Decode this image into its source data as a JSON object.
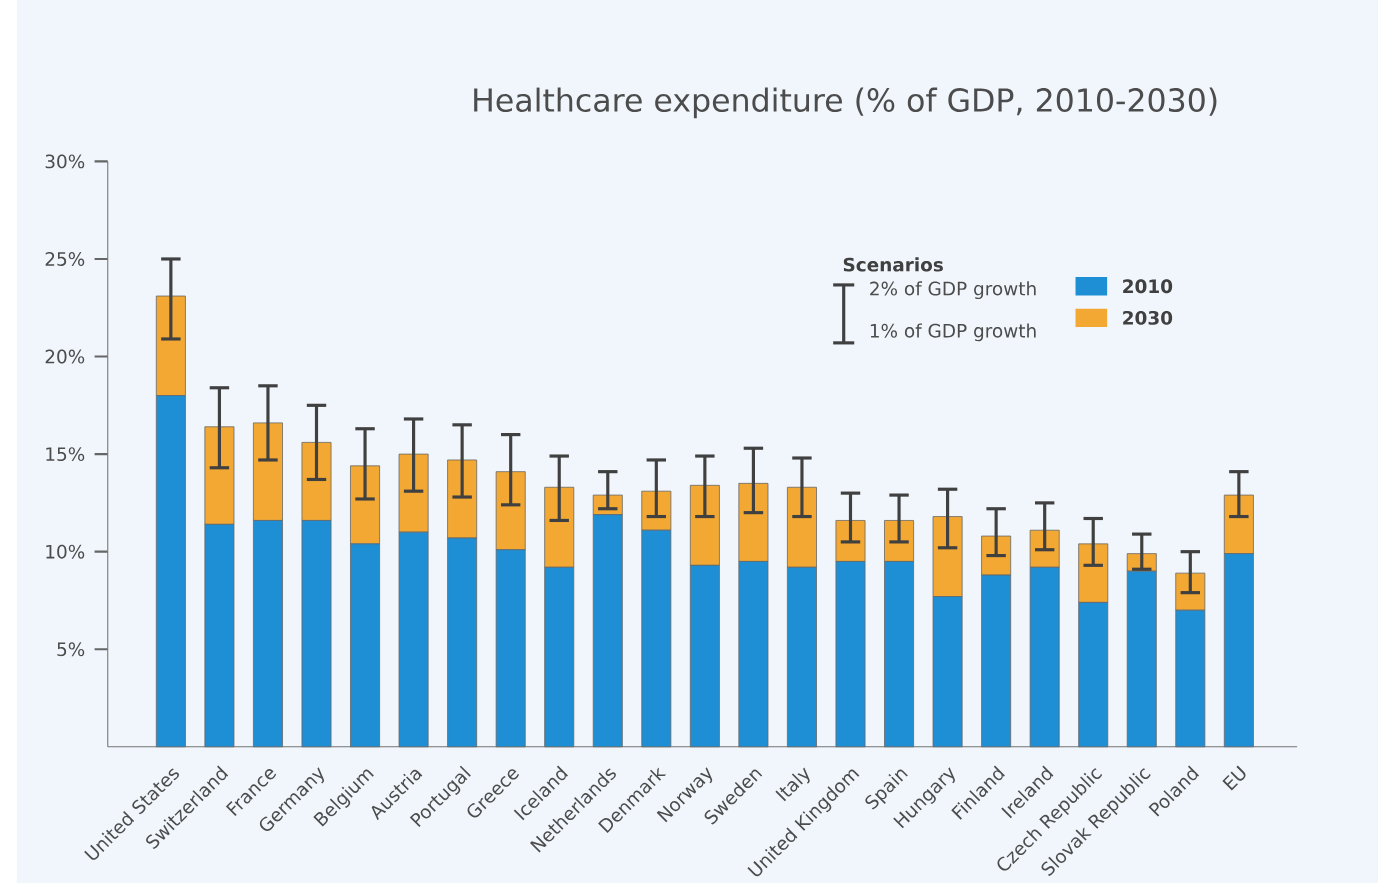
{
  "chart_data": {
    "type": "bar",
    "title": "Healthcare expenditure (% of GDP, 2010-2030)",
    "categories": [
      "United States",
      "Switzerland",
      "France",
      "Germany",
      "Belgium",
      "Austria",
      "Portugal",
      "Greece",
      "Iceland",
      "Netherlands",
      "Denmark",
      "Norway",
      "Sweden",
      "Italy",
      "United Kingdom",
      "Spain",
      "Hungary",
      "Finland",
      "Ireland",
      "Czech Republic",
      "Slovak Republic",
      "Poland",
      "EU"
    ],
    "stacked": true,
    "series": [
      {
        "name": "2010",
        "color": "#1e8fd5",
        "values": [
          18.0,
          11.4,
          11.6,
          11.6,
          10.4,
          11.0,
          10.7,
          10.1,
          9.2,
          11.9,
          11.1,
          9.3,
          9.5,
          9.2,
          9.5,
          9.5,
          7.7,
          8.8,
          9.2,
          7.4,
          9.0,
          7.0,
          9.9
        ]
      },
      {
        "name": "2030",
        "color": "#f2a833",
        "values": [
          5.1,
          5.0,
          5.0,
          4.0,
          4.0,
          4.0,
          4.0,
          4.0,
          4.1,
          1.0,
          2.0,
          4.1,
          4.0,
          4.1,
          2.1,
          2.1,
          4.1,
          2.0,
          1.9,
          3.0,
          0.9,
          1.9,
          3.0
        ],
        "errors": [
          [
            20.9,
            25.0
          ],
          [
            14.3,
            18.4
          ],
          [
            14.7,
            18.5
          ],
          [
            13.7,
            17.5
          ],
          [
            12.7,
            16.3
          ],
          [
            13.1,
            16.8
          ],
          [
            12.8,
            16.5
          ],
          [
            12.4,
            16.0
          ],
          [
            11.6,
            14.9
          ],
          [
            12.2,
            14.1
          ],
          [
            11.8,
            14.7
          ],
          [
            11.8,
            14.9
          ],
          [
            12.0,
            15.3
          ],
          [
            11.8,
            14.8
          ],
          [
            10.5,
            13.0
          ],
          [
            10.5,
            12.9
          ],
          [
            10.2,
            13.2
          ],
          [
            9.8,
            12.2
          ],
          [
            10.1,
            12.5
          ],
          [
            9.3,
            11.7
          ],
          [
            9.1,
            10.9
          ],
          [
            7.9,
            10.0
          ],
          [
            11.8,
            14.1
          ]
        ]
      }
    ],
    "ylim": [
      0,
      30
    ],
    "yticks": [
      {
        "value": 5,
        "label": "5%"
      },
      {
        "value": 10,
        "label": "10%"
      },
      {
        "value": 15,
        "label": "15%"
      },
      {
        "value": 20,
        "label": "20%"
      },
      {
        "value": 25,
        "label": "25%"
      },
      {
        "value": 30,
        "label": "30%"
      }
    ],
    "legend": "top right",
    "legend_title": "Scenarios",
    "annotations": [
      "2% of GDP growth",
      "1% of GDP growth"
    ]
  }
}
